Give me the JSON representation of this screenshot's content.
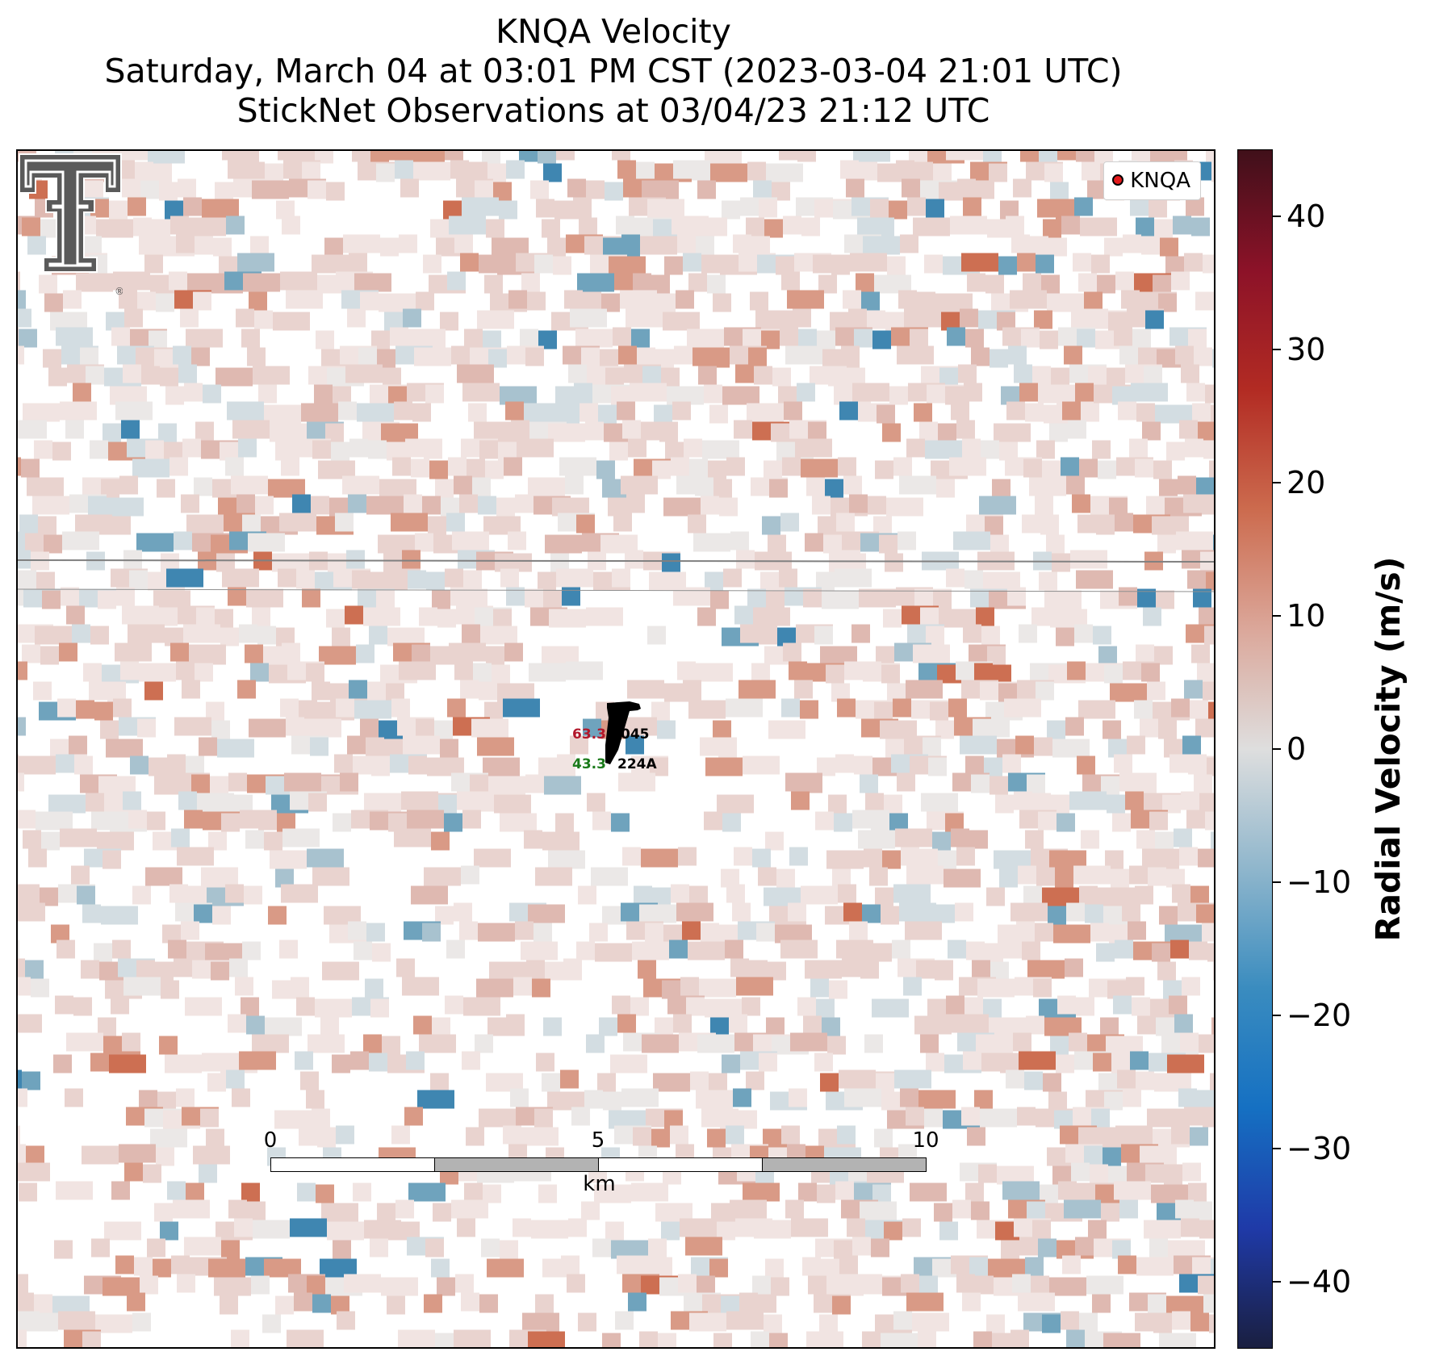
{
  "title": {
    "line1": "KNQA Velocity",
    "line2": "Saturday, March 04 at 03:01 PM CST (2023-03-04 21:01 UTC)",
    "line3": "StickNet Observations at 03/04/23 21:12 UTC"
  },
  "legend": {
    "label": "KNQA",
    "marker_color": "#e31a1c"
  },
  "logo": {
    "name": "texas-tech-double-t-logo",
    "mark": "®"
  },
  "station": {
    "upper": {
      "value": "63.3",
      "id": "045",
      "value_color": "#b2182b"
    },
    "lower": {
      "value": "43.3",
      "id": "224A",
      "value_color": "#1a7a1a"
    }
  },
  "scalebar": {
    "ticks": [
      "0",
      "5",
      "10"
    ],
    "unit": "km"
  },
  "colorbar": {
    "label": "Radial Velocity (m/s)",
    "ticks": [
      "40",
      "30",
      "20",
      "10",
      "0",
      "−10",
      "−20",
      "−30",
      "−40"
    ],
    "range": [
      -45,
      45
    ],
    "colors": [
      "#1a1f40",
      "#1f3aa8",
      "#1570c2",
      "#3a8cbf",
      "#8fb6cc",
      "#dedede",
      "#dba79a",
      "#cc6b4e",
      "#b22b23",
      "#8c1228",
      "#40101a"
    ]
  },
  "map": {
    "radial_velocity_grid_note": "",
    "colors": {
      "light_pink": "#f1e4e2",
      "pink": "#e9d3cf",
      "mid_pink": "#dfb9b1",
      "salmon": "#d99a86",
      "red_orange": "#cd6f52",
      "light_blue": "#d3dde2",
      "blue_gray": "#a8c2cf",
      "blue": "#6fa3bd",
      "strong_blue": "#3f86b1",
      "neutral": "#ebe8e7"
    }
  }
}
